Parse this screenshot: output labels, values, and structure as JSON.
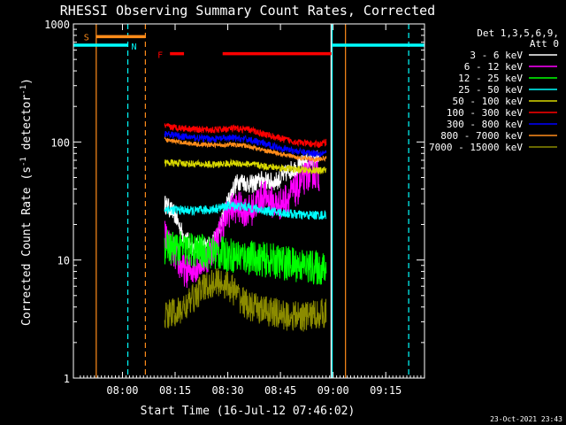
{
  "chart_data": {
    "type": "line",
    "title": "RHESSI Observing Summary Count Rates, Corrected",
    "xlabel": "Start Time (16-Jul-12 07:46:02)",
    "ylabel_main": "Corrected Count Rate (s",
    "ylabel_sup1": "-1",
    "ylabel_mid": " detector",
    "ylabel_sup2": "-1",
    "ylabel_end": ")",
    "yscale": "log",
    "xlim_minutes": [
      0,
      100
    ],
    "ylim": [
      1,
      1000
    ],
    "x_ticks": [
      {
        "minute": 13.97,
        "label": "08:00"
      },
      {
        "minute": 28.97,
        "label": "08:15"
      },
      {
        "minute": 43.97,
        "label": "08:30"
      },
      {
        "minute": 58.97,
        "label": "08:45"
      },
      {
        "minute": 73.97,
        "label": "09:00"
      },
      {
        "minute": 88.97,
        "label": "09:15"
      }
    ],
    "y_ticks": [
      {
        "value": 1,
        "label": "1"
      },
      {
        "value": 10,
        "label": "10"
      },
      {
        "value": 100,
        "label": "100"
      },
      {
        "value": 1000,
        "label": "1000"
      }
    ],
    "legend_header": [
      "Det 1,3,5,6,9,",
      "Att 0"
    ],
    "timestamp": "23-Oct-2021 23:43",
    "series": [
      {
        "name": "3 - 6 keV",
        "color": "#ffffff",
        "points": [
          [
            26,
            30
          ],
          [
            27,
            28
          ],
          [
            28,
            26
          ],
          [
            29,
            24
          ],
          [
            30,
            20
          ],
          [
            31,
            17
          ],
          [
            32,
            15
          ],
          [
            33,
            14
          ],
          [
            34,
            13
          ],
          [
            35,
            13
          ],
          [
            36,
            13
          ],
          [
            37,
            13
          ],
          [
            38,
            13
          ],
          [
            39,
            13.5
          ],
          [
            40,
            14.5
          ],
          [
            41,
            16
          ],
          [
            42,
            20
          ],
          [
            43,
            25
          ],
          [
            44,
            31
          ],
          [
            45,
            37
          ],
          [
            46,
            43
          ],
          [
            47,
            46
          ],
          [
            48,
            47
          ],
          [
            49,
            45
          ],
          [
            50,
            44
          ],
          [
            51,
            44
          ],
          [
            52,
            45
          ],
          [
            53,
            47
          ],
          [
            54,
            48
          ],
          [
            55,
            47
          ],
          [
            56,
            46
          ],
          [
            57,
            46
          ],
          [
            58,
            47
          ],
          [
            59,
            49
          ],
          [
            60,
            52
          ],
          [
            61,
            56
          ],
          [
            62,
            58
          ],
          [
            63,
            60
          ],
          [
            64,
            62
          ],
          [
            65,
            65
          ],
          [
            66,
            67
          ],
          [
            67,
            69
          ],
          [
            68,
            70
          ],
          [
            69,
            72
          ],
          [
            70,
            73
          ]
        ]
      },
      {
        "name": "6 - 12 keV",
        "color": "#ff00ff",
        "points": [
          [
            26,
            16
          ],
          [
            27,
            14
          ],
          [
            28,
            12
          ],
          [
            29,
            11
          ],
          [
            30,
            9.5
          ],
          [
            31,
            8.5
          ],
          [
            32,
            8
          ],
          [
            33,
            8
          ],
          [
            34,
            8.5
          ],
          [
            35,
            9
          ],
          [
            36,
            9.5
          ],
          [
            37,
            10
          ],
          [
            38,
            10.5
          ],
          [
            39,
            11.5
          ],
          [
            40,
            13
          ],
          [
            41,
            15
          ],
          [
            42,
            18
          ],
          [
            43,
            22
          ],
          [
            44,
            25
          ],
          [
            45,
            27
          ],
          [
            46,
            28
          ],
          [
            47,
            28
          ],
          [
            48,
            27
          ],
          [
            49,
            26
          ],
          [
            50,
            26
          ],
          [
            51,
            27
          ],
          [
            52,
            30
          ],
          [
            53,
            33
          ],
          [
            54,
            35
          ],
          [
            55,
            34
          ],
          [
            56,
            32
          ],
          [
            57,
            30
          ],
          [
            58,
            29
          ],
          [
            59,
            30
          ],
          [
            60,
            32
          ],
          [
            61,
            34
          ],
          [
            62,
            36
          ],
          [
            63,
            38
          ],
          [
            64,
            40
          ],
          [
            65,
            45
          ],
          [
            66,
            50
          ],
          [
            67,
            54
          ],
          [
            68,
            55
          ],
          [
            69,
            54
          ],
          [
            70,
            52
          ]
        ]
      },
      {
        "name": "12 - 25 keV",
        "color": "#00ff00",
        "points": [
          [
            26,
            13
          ],
          [
            30,
            12.5
          ],
          [
            35,
            12
          ],
          [
            40,
            11.5
          ],
          [
            45,
            11
          ],
          [
            50,
            10.5
          ],
          [
            55,
            10
          ],
          [
            60,
            9.5
          ],
          [
            65,
            9
          ],
          [
            70,
            8.5
          ],
          [
            72,
            8.3
          ]
        ]
      },
      {
        "name": "25 - 50 keV",
        "color": "#00ffff",
        "points": [
          [
            26,
            27
          ],
          [
            30,
            26.5
          ],
          [
            35,
            26
          ],
          [
            40,
            27
          ],
          [
            45,
            29
          ],
          [
            50,
            28
          ],
          [
            55,
            26
          ],
          [
            60,
            25
          ],
          [
            65,
            24
          ],
          [
            70,
            24
          ],
          [
            72,
            24
          ]
        ]
      },
      {
        "name": "50 - 100 keV",
        "color": "#d8d800",
        "points": [
          [
            26,
            67
          ],
          [
            30,
            66
          ],
          [
            35,
            65
          ],
          [
            40,
            64
          ],
          [
            45,
            66
          ],
          [
            50,
            65
          ],
          [
            55,
            62
          ],
          [
            60,
            60
          ],
          [
            65,
            58
          ],
          [
            70,
            57
          ],
          [
            72,
            58
          ]
        ]
      },
      {
        "name": "100 - 300 keV",
        "color": "#ff0000",
        "points": [
          [
            26,
            135
          ],
          [
            30,
            132
          ],
          [
            35,
            128
          ],
          [
            40,
            126
          ],
          [
            45,
            130
          ],
          [
            50,
            127
          ],
          [
            55,
            115
          ],
          [
            60,
            105
          ],
          [
            65,
            98
          ],
          [
            70,
            95
          ],
          [
            72,
            100
          ]
        ]
      },
      {
        "name": "300 - 800 keV",
        "color": "#0000ff",
        "points": [
          [
            26,
            118
          ],
          [
            30,
            112
          ],
          [
            35,
            108
          ],
          [
            40,
            106
          ],
          [
            45,
            108
          ],
          [
            50,
            105
          ],
          [
            55,
            95
          ],
          [
            60,
            88
          ],
          [
            65,
            82
          ],
          [
            70,
            80
          ],
          [
            72,
            82
          ]
        ]
      },
      {
        "name": "800 - 7000 keV",
        "color": "#ff8c1a",
        "points": [
          [
            26,
            104
          ],
          [
            30,
            100
          ],
          [
            35,
            96
          ],
          [
            40,
            94
          ],
          [
            45,
            95
          ],
          [
            50,
            92
          ],
          [
            55,
            84
          ],
          [
            60,
            78
          ],
          [
            65,
            73
          ],
          [
            70,
            71
          ],
          [
            72,
            73
          ]
        ]
      },
      {
        "name": "7000 - 15000 keV",
        "color": "#8b8b00",
        "points": [
          [
            26,
            3.5
          ],
          [
            30,
            3.6
          ],
          [
            33,
            4.3
          ],
          [
            36,
            5.5
          ],
          [
            39,
            6.3
          ],
          [
            42,
            6.5
          ],
          [
            45,
            5.8
          ],
          [
            47,
            4.9
          ],
          [
            50,
            4
          ],
          [
            55,
            3.7
          ],
          [
            60,
            3.4
          ],
          [
            65,
            3.3
          ],
          [
            70,
            3.5
          ],
          [
            72,
            3.6
          ]
        ]
      }
    ],
    "flags": [
      {
        "label": "S",
        "color": "#ff8c1a",
        "start_min": 6.5,
        "end_min": 20.5,
        "level": 780
      },
      {
        "label": "N",
        "color": "#00ffff",
        "start_min": 0,
        "end_min": 15.5,
        "level": 660
      },
      {
        "label": "N",
        "color": "#00ffff",
        "start_min": 73.7,
        "end_min": 100,
        "level": 660
      },
      {
        "label": "F",
        "color": "#ff0000",
        "start_min": 27.5,
        "end_min": 31.5,
        "level": 560
      },
      {
        "label": "F",
        "color": "#ff0000",
        "start_min": 42.5,
        "end_min": 73.5,
        "level": 560
      }
    ],
    "markers": [
      {
        "minute": 6.5,
        "color": "#ff8c1a",
        "style": "solid"
      },
      {
        "minute": 15.5,
        "color": "#00ffff",
        "style": "dashed"
      },
      {
        "minute": 20.5,
        "color": "#ff8c1a",
        "style": "dashed"
      },
      {
        "minute": 73.4,
        "color": "#ffffff",
        "style": "solid"
      },
      {
        "minute": 73.7,
        "color": "#00ffff",
        "style": "solid"
      },
      {
        "minute": 77.5,
        "color": "#ff8c1a",
        "style": "solid"
      },
      {
        "minute": 95.5,
        "color": "#00ffff",
        "style": "dashed"
      }
    ]
  }
}
